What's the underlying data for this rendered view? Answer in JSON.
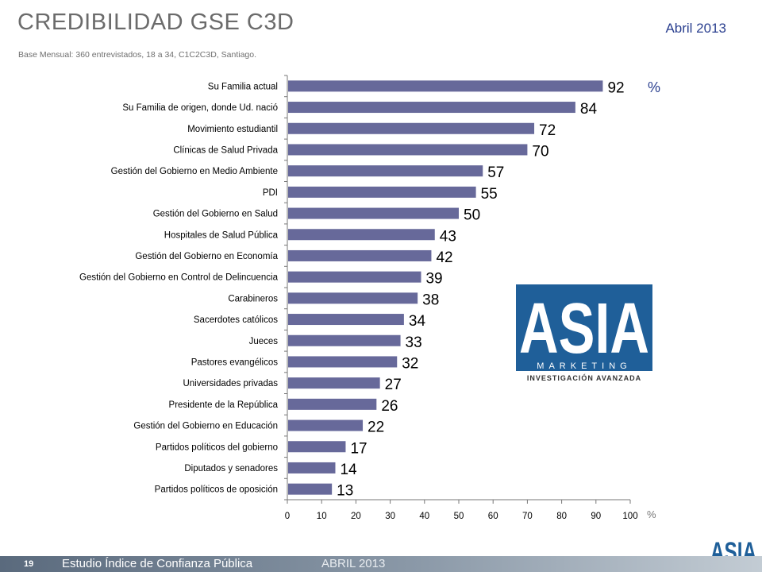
{
  "header": {
    "title": "CREDIBILIDAD GSE C3D",
    "date": "Abril 2013",
    "subtitle": "Base Mensual:  360 entrevistados, 18 a 34, C1C2C3D, Santiago."
  },
  "chart_data": {
    "type": "bar",
    "orientation": "horizontal",
    "categories": [
      "Su Familia actual",
      "Su Familia de origen, donde Ud. nació",
      "Movimiento estudiantil",
      "Clínicas de Salud Privada",
      "Gestión del Gobierno en Medio Ambiente",
      "PDI",
      "Gestión del Gobierno en Salud",
      "Hospitales de Salud Pública",
      "Gestión del Gobierno en Economía",
      "Gestión del Gobierno en Control de Delincuencia",
      "Carabineros",
      "Sacerdotes católicos",
      "Jueces",
      "Pastores evangélicos",
      "Universidades privadas",
      "Presidente de la República",
      "Gestión del Gobierno en Educación",
      "Partidos políticos del gobierno",
      "Diputados y senadores",
      "Partidos políticos de oposición"
    ],
    "values": [
      92,
      84,
      72,
      70,
      57,
      55,
      50,
      43,
      42,
      39,
      38,
      34,
      33,
      32,
      27,
      26,
      22,
      17,
      14,
      13
    ],
    "xlim": [
      0,
      100
    ],
    "xticks": [
      "0",
      "10",
      "20",
      "30",
      "40",
      "50",
      "60",
      "70",
      "80",
      "90",
      "100"
    ],
    "unit_label": "%",
    "bar_color": "#67699a",
    "grid": false
  },
  "logo": {
    "big_text": "ASIA",
    "band_text": "MARKETING",
    "tagline": "INVESTIGACIÓN AVANZADA",
    "color": "#1f5f99"
  },
  "footer": {
    "page_number": "19",
    "study": "Estudio  Índice de Confianza Pública",
    "date": "ABRIL 2013"
  }
}
